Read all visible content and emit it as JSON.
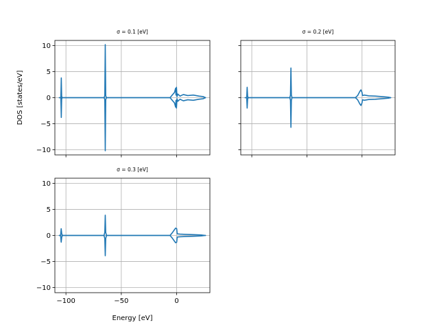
{
  "chart_data": [
    {
      "type": "line",
      "title": "σ = 0.1 [eV]",
      "xlabel": "",
      "ylabel": "DOS [states/eV]",
      "xlim": [
        -110,
        30
      ],
      "ylim": [
        -11,
        11
      ],
      "xticks": [
        -100,
        -50,
        0
      ],
      "yticks": [
        -10,
        -5,
        0,
        5,
        10
      ],
      "xtick_labels": [],
      "ytick_labels": [
        "−10",
        "−5",
        "0",
        "5",
        "10"
      ],
      "grid": true,
      "series": [
        {
          "color": "#1f77b4",
          "mirror": true,
          "points": [
            [
              -106,
              0
            ],
            [
              -104.6,
              0
            ],
            [
              -104.2,
              3.8
            ],
            [
              -103.9,
              0.3
            ],
            [
              -103.5,
              0
            ],
            [
              -65.5,
              0
            ],
            [
              -64.9,
              0.4
            ],
            [
              -64.5,
              10.2
            ],
            [
              -64.1,
              0.4
            ],
            [
              -63.5,
              0
            ],
            [
              -6,
              0
            ],
            [
              -4,
              0.5
            ],
            [
              -2,
              1.0
            ],
            [
              -1.0,
              1.8
            ],
            [
              -0.6,
              0.5
            ],
            [
              -0.2,
              2.0
            ],
            [
              0.3,
              0.2
            ],
            [
              1,
              0.7
            ],
            [
              3,
              0.3
            ],
            [
              6,
              0.6
            ],
            [
              10,
              0.4
            ],
            [
              15,
              0.5
            ],
            [
              20,
              0.3
            ],
            [
              24,
              0.2
            ],
            [
              26,
              0
            ]
          ]
        }
      ]
    },
    {
      "type": "line",
      "title": "σ = 0.2 [eV]",
      "xlabel": "",
      "ylabel": "",
      "xlim": [
        -110,
        30
      ],
      "ylim": [
        -11,
        11
      ],
      "xticks": [
        -100,
        -50,
        0
      ],
      "yticks": [
        -10,
        -5,
        0,
        5,
        10
      ],
      "xtick_labels": [],
      "ytick_labels": [],
      "grid": true,
      "series": [
        {
          "color": "#1f77b4",
          "mirror": true,
          "points": [
            [
              -106,
              0
            ],
            [
              -104.6,
              0
            ],
            [
              -104.2,
              2.0
            ],
            [
              -103.8,
              0.3
            ],
            [
              -103.3,
              0
            ],
            [
              -65.5,
              0
            ],
            [
              -64.9,
              0.5
            ],
            [
              -64.5,
              5.7
            ],
            [
              -64.1,
              0.5
            ],
            [
              -63.5,
              0
            ],
            [
              -6,
              0
            ],
            [
              -4,
              0.4
            ],
            [
              -2,
              1.2
            ],
            [
              -1,
              1.5
            ],
            [
              0,
              1.0
            ],
            [
              0.4,
              0.4
            ],
            [
              2,
              0.5
            ],
            [
              6,
              0.35
            ],
            [
              12,
              0.3
            ],
            [
              18,
              0.2
            ],
            [
              24,
              0.1
            ],
            [
              26,
              0
            ]
          ]
        }
      ]
    },
    {
      "type": "line",
      "title": "σ = 0.3 [eV]",
      "xlabel": "Energy [eV]",
      "ylabel": "",
      "xlim": [
        -110,
        30
      ],
      "ylim": [
        -11,
        11
      ],
      "xticks": [
        -100,
        -50,
        0
      ],
      "yticks": [
        -10,
        -5,
        0,
        5,
        10
      ],
      "xtick_labels": [
        "−100",
        "−50",
        "0"
      ],
      "ytick_labels": [
        "−10",
        "−5",
        "0",
        "5",
        "10"
      ],
      "grid": true,
      "series": [
        {
          "color": "#1f77b4",
          "mirror": true,
          "points": [
            [
              -106,
              0
            ],
            [
              -104.8,
              0
            ],
            [
              -104.3,
              1.3
            ],
            [
              -103.8,
              0.3
            ],
            [
              -103.2,
              0
            ],
            [
              -65.6,
              0
            ],
            [
              -64.9,
              0.6
            ],
            [
              -64.5,
              3.9
            ],
            [
              -64.1,
              0.6
            ],
            [
              -63.4,
              0
            ],
            [
              -6,
              0
            ],
            [
              -4,
              0.5
            ],
            [
              -2,
              1.1
            ],
            [
              -1,
              1.4
            ],
            [
              0,
              1.3
            ],
            [
              0.5,
              0.3
            ],
            [
              3,
              0.25
            ],
            [
              8,
              0.2
            ],
            [
              15,
              0.15
            ],
            [
              22,
              0.1
            ],
            [
              26,
              0
            ]
          ]
        }
      ]
    }
  ]
}
